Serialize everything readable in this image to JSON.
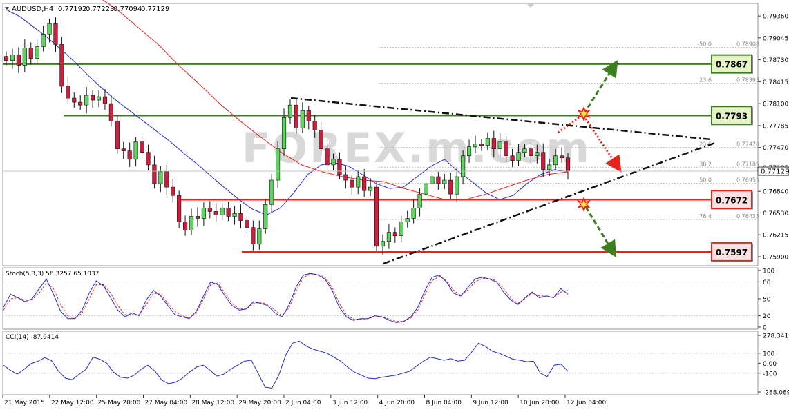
{
  "chart_data": {
    "type": "candlestick",
    "header": {
      "symbol_timeframe": "AUDUSD,H4",
      "open": "0.77192",
      "high": "0.77223",
      "low": "0.77094",
      "close": "0.77129"
    },
    "price_axis": {
      "range": [
        0.7582,
        0.7949
      ],
      "ticks": [
        "0.79360",
        "0.79045",
        "0.78730",
        "0.78415",
        "0.78100",
        "0.77785",
        "0.77470",
        "0.77185",
        "0.76840",
        "0.76530",
        "0.76215",
        "0.75900"
      ],
      "current_price": "0.77129"
    },
    "time_axis_labels": [
      "21 May 2015",
      "22 May 12:00",
      "25 May 20:00",
      "27 May 04:00",
      "28 May 12:00",
      "29 May 20:00",
      "2 Jun 04:00",
      "3 Jun 12:00",
      "4 Jun 20:00",
      "8 Jun 04:00",
      "9 Jun 12:00",
      "10 Jun 20:00",
      "12 Jun 04:00"
    ],
    "closes": [
      0.7872,
      0.788,
      0.7865,
      0.789,
      0.7875,
      0.7892,
      0.791,
      0.7925,
      0.7895,
      0.7835,
      0.7818,
      0.7812,
      0.7808,
      0.7822,
      0.7815,
      0.782,
      0.781,
      0.7785,
      0.7745,
      0.7742,
      0.773,
      0.7755,
      0.774,
      0.7722,
      0.7695,
      0.7712,
      0.769,
      0.7678,
      0.764,
      0.7628,
      0.7648,
      0.7645,
      0.766,
      0.7655,
      0.765,
      0.766,
      0.7648,
      0.7652,
      0.7642,
      0.7632,
      0.7608,
      0.763,
      0.7665,
      0.77,
      0.7745,
      0.779,
      0.7808,
      0.7775,
      0.78,
      0.7785,
      0.7772,
      0.7745,
      0.7722,
      0.773,
      0.7708,
      0.77,
      0.769,
      0.7705,
      0.7685,
      0.769,
      0.7605,
      0.7612,
      0.7625,
      0.762,
      0.764,
      0.7645,
      0.766,
      0.768,
      0.7695,
      0.7705,
      0.7695,
      0.77,
      0.768,
      0.7705,
      0.7735,
      0.7748,
      0.7752,
      0.775,
      0.776,
      0.7745,
      0.7755,
      0.7735,
      0.7728,
      0.774,
      0.7745,
      0.7735,
      0.774,
      0.7715,
      0.7722,
      0.7735,
      0.7732,
      0.7713
    ],
    "moving_averages": [
      {
        "color": "#1f2bd0",
        "values": [
          0.7945,
          0.7935,
          0.792,
          0.7905,
          0.7888,
          0.787,
          0.785,
          0.7832,
          0.7815,
          0.78,
          0.7785,
          0.777,
          0.7755,
          0.7738,
          0.7722,
          0.7705,
          0.7688,
          0.7672,
          0.7658,
          0.765,
          0.766,
          0.7682,
          0.7708,
          0.7722,
          0.7725,
          0.772,
          0.7708,
          0.7695,
          0.7688,
          0.769,
          0.7705,
          0.772,
          0.773,
          0.7712,
          0.7698,
          0.7682,
          0.7672,
          0.7678,
          0.7695,
          0.7708,
          0.7715,
          0.7712
        ]
      },
      {
        "color": "#e8231c",
        "values": [
          0.7965,
          0.7945,
          0.792,
          0.7895,
          0.7865,
          0.7838,
          0.781,
          0.7785,
          0.7762,
          0.774,
          0.7722,
          0.7712,
          0.7705,
          0.77,
          0.7698,
          0.7688,
          0.768,
          0.7672,
          0.7672,
          0.768,
          0.769,
          0.77,
          0.7708,
          0.7712
        ]
      }
    ],
    "horizontal_levels": [
      {
        "label": "0.7867",
        "price": 0.7867,
        "color": "#3d7f1f"
      },
      {
        "label": "0.7793",
        "price": 0.7793,
        "color": "#3d7f1f"
      },
      {
        "label": "0.7672",
        "price": 0.7672,
        "color": "#e8231c"
      },
      {
        "label": "0.7597",
        "price": 0.7597,
        "color": "#e8231c"
      }
    ],
    "fibonacci_levels": [
      {
        "label": "-50.0",
        "value": "0.78908"
      },
      {
        "label": "23.6",
        "value": "0.78393"
      },
      {
        "label": "23.6",
        "value": "0.77470"
      },
      {
        "label": "38.2",
        "value": "0.77185"
      },
      {
        "label": "50.0",
        "value": "0.76955"
      },
      {
        "label": "76.4",
        "value": "0.76435"
      }
    ],
    "watermark": "FOREX.m.com",
    "stochastic": {
      "title": "Stoch(5,3,3) 58.3257 65.1037",
      "ticks": [
        "100",
        "80",
        "50",
        "20",
        "0"
      ],
      "range": [
        0,
        100
      ],
      "main": [
        35,
        58,
        52,
        45,
        50,
        68,
        85,
        58,
        28,
        15,
        15,
        30,
        60,
        82,
        73,
        52,
        30,
        18,
        25,
        20,
        48,
        65,
        55,
        38,
        22,
        18,
        15,
        28,
        55,
        80,
        75,
        55,
        38,
        30,
        32,
        45,
        42,
        38,
        25,
        18,
        40,
        72,
        92,
        95,
        92,
        85,
        65,
        35,
        18,
        12,
        15,
        15,
        20,
        18,
        12,
        8,
        10,
        18,
        35,
        65,
        88,
        92,
        80,
        60,
        55,
        70,
        85,
        88,
        85,
        80,
        62,
        48,
        40,
        52,
        62,
        52,
        55,
        52,
        68,
        58
      ],
      "signal": [
        30,
        50,
        52,
        48,
        48,
        60,
        78,
        68,
        40,
        20,
        15,
        25,
        50,
        75,
        75,
        60,
        38,
        22,
        22,
        22,
        40,
        60,
        58,
        42,
        28,
        20,
        16,
        25,
        50,
        75,
        78,
        60,
        42,
        32,
        32,
        42,
        44,
        40,
        30,
        20,
        35,
        65,
        88,
        94,
        93,
        88,
        70,
        42,
        22,
        14,
        14,
        15,
        18,
        18,
        14,
        10,
        10,
        16,
        30,
        58,
        82,
        90,
        82,
        65,
        56,
        66,
        80,
        86,
        86,
        82,
        68,
        52,
        42,
        50,
        60,
        55,
        55,
        52,
        62,
        65
      ]
    },
    "cci": {
      "title": "CCI(14) -87.9414",
      "ticks": [
        "278.3419",
        "100",
        "0.00",
        "-100",
        "-288.0891"
      ],
      "range": [
        -288.0891,
        278.3419
      ],
      "values": [
        -20,
        -70,
        -110,
        -60,
        -5,
        20,
        55,
        25,
        -80,
        -150,
        -165,
        -110,
        -60,
        60,
        40,
        0,
        -90,
        -140,
        -150,
        -120,
        -60,
        -20,
        -80,
        -170,
        -205,
        -190,
        -150,
        -90,
        -40,
        -20,
        -70,
        -130,
        -110,
        -60,
        -20,
        20,
        30,
        -100,
        -240,
        -250,
        -120,
        80,
        200,
        220,
        170,
        140,
        120,
        100,
        60,
        20,
        -40,
        -90,
        -120,
        -150,
        -155,
        -140,
        -130,
        -120,
        -100,
        -80,
        -30,
        20,
        60,
        45,
        30,
        45,
        20,
        30,
        110,
        200,
        170,
        120,
        100,
        70,
        40,
        30,
        15,
        20,
        -100,
        -135,
        -20,
        -10,
        -80
      ]
    }
  }
}
